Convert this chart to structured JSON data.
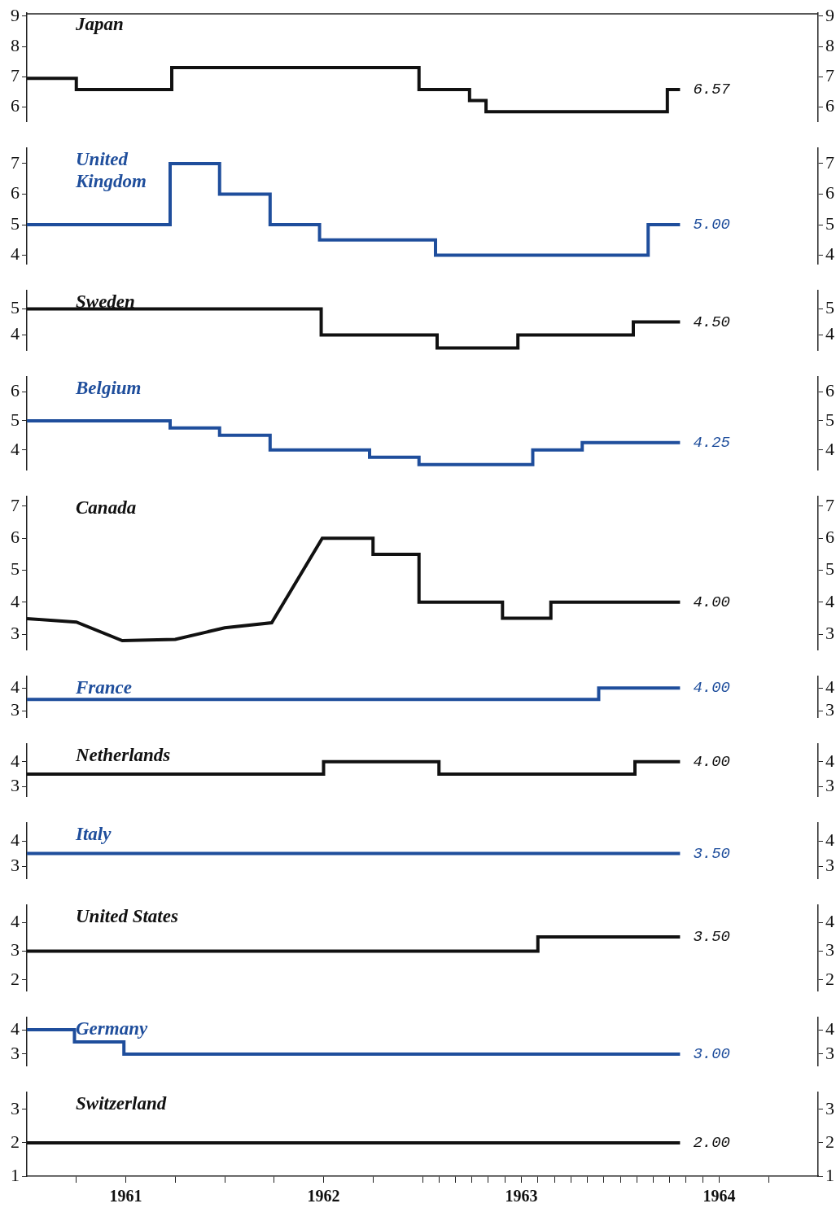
{
  "chart_data": [
    {
      "type": "step",
      "x": [
        "1961-01-01",
        "1961-04-01",
        "1961-09-25",
        "1962-12-25",
        "1963-03-27",
        "1963-04-27",
        "1964-03-27",
        "1964-04-20"
      ],
      "xlim": [
        "1961-01-01",
        "1965-01-01"
      ],
      "ylim": [
        5.5,
        9.1
      ],
      "yticks": [
        6,
        7,
        8,
        9
      ],
      "y2lim": [
        5.5,
        9.1
      ],
      "y2ticks": [
        6,
        7,
        8,
        9
      ],
      "tick_labels": "y",
      "series": [
        {
          "name": "Japan",
          "color": "#111111",
          "values": [
            6.94,
            6.57,
            7.3,
            6.57,
            6.21,
            5.84,
            6.57,
            6.57
          ],
          "value_labels": [
            null,
            null,
            null,
            null,
            null,
            null,
            null,
            "6.57"
          ]
        }
      ]
    },
    {
      "type": "step",
      "x": [
        "1961-01-01",
        "1961-09-22",
        "1961-12-22",
        "1962-03-24",
        "1962-06-24",
        "1963-01-25",
        "1964-02-22",
        "1964-04-20"
      ],
      "xlim": [
        "1961-01-01",
        "1965-01-01"
      ],
      "ylim": [
        3.7,
        7.5
      ],
      "yticks": [
        4,
        5,
        6,
        7
      ],
      "y2lim": [
        3.7,
        7.5
      ],
      "y2ticks": [
        4,
        5,
        6,
        7
      ],
      "tick_labels": "y",
      "series": [
        {
          "name": "United Kingdom",
          "color": "#1f4e9c",
          "values": [
            5,
            7,
            6,
            5,
            4.5,
            4,
            5,
            5
          ],
          "value_labels": [
            null,
            null,
            null,
            null,
            null,
            null,
            null,
            "5.00"
          ]
        }
      ]
    },
    {
      "type": "step",
      "x": [
        "1961-01-01",
        "1962-06-27",
        "1963-01-28",
        "1963-06-25",
        "1964-01-25",
        "1964-04-20"
      ],
      "xlim": [
        "1961-01-01",
        "1965-01-01"
      ],
      "ylim": [
        3.4,
        5.7
      ],
      "yticks": [
        4,
        5
      ],
      "y2lim": [
        3.4,
        5.7
      ],
      "y2ticks": [
        4,
        5
      ],
      "tick_labels": "y",
      "series": [
        {
          "name": "Sweden",
          "color": "#111111",
          "values": [
            5,
            4,
            3.5,
            4,
            4.5,
            4.5
          ],
          "value_labels": [
            null,
            null,
            null,
            null,
            null,
            "4.50"
          ]
        }
      ]
    },
    {
      "type": "step",
      "x": [
        "1961-01-01",
        "1961-09-22",
        "1961-12-22",
        "1962-03-24",
        "1962-09-25",
        "1962-12-25",
        "1963-07-22",
        "1963-10-22",
        "1964-04-20"
      ],
      "xlim": [
        "1961-01-01",
        "1965-01-01"
      ],
      "ylim": [
        3.3,
        6.5
      ],
      "yticks": [
        4,
        5,
        6
      ],
      "y2lim": [
        3.3,
        6.5
      ],
      "y2ticks": [
        4,
        5,
        6
      ],
      "tick_labels": "y",
      "series": [
        {
          "name": "Belgium",
          "color": "#1f4e9c",
          "values": [
            5,
            4.75,
            4.5,
            4,
            3.75,
            3.5,
            4,
            4.25,
            4.25
          ],
          "value_labels": [
            null,
            null,
            null,
            null,
            null,
            null,
            null,
            null,
            "4.25"
          ]
        }
      ]
    },
    {
      "type": "line",
      "x": [
        "1961-01-01",
        "1961-04-01",
        "1961-06-25",
        "1961-10-01",
        "1962-01-01",
        "1962-03-27",
        "1962-06-29",
        "1962-10-01",
        "1962-10-01",
        "1962-12-25",
        "1962-12-25",
        "1963-05-27",
        "1963-05-27",
        "1963-08-25",
        "1963-08-25",
        "1964-04-20"
      ],
      "xlim": [
        "1961-01-01",
        "1965-01-01"
      ],
      "ylim": [
        2.5,
        7.3
      ],
      "yticks": [
        3,
        4,
        5,
        6,
        7
      ],
      "y2lim": [
        2.5,
        7.3
      ],
      "y2ticks": [
        3,
        4,
        5,
        6,
        7
      ],
      "tick_labels": "y",
      "series": [
        {
          "name": "Canada",
          "color": "#111111",
          "values": [
            3.49,
            3.38,
            2.8,
            2.84,
            3.2,
            3.36,
            6,
            6,
            5.5,
            5.5,
            4,
            4,
            3.5,
            3.5,
            4,
            4
          ],
          "value_labels": [
            null,
            null,
            null,
            null,
            null,
            null,
            null,
            null,
            null,
            null,
            null,
            null,
            null,
            null,
            null,
            "4.00"
          ]
        }
      ]
    },
    {
      "type": "step",
      "x": [
        "1961-01-01",
        "1963-11-22",
        "1964-04-20"
      ],
      "xlim": [
        "1961-01-01",
        "1965-01-01"
      ],
      "ylim": [
        2.7,
        4.5
      ],
      "yticks": [
        3,
        4
      ],
      "y2lim": [
        2.7,
        4.5
      ],
      "y2ticks": [
        3,
        4
      ],
      "tick_labels": "y",
      "series": [
        {
          "name": "France",
          "color": "#1f4e9c",
          "values": [
            3.5,
            4,
            4
          ],
          "value_labels": [
            null,
            null,
            "4.00"
          ]
        }
      ]
    },
    {
      "type": "step",
      "x": [
        "1961-01-01",
        "1962-07-01",
        "1963-02-01",
        "1964-01-28",
        "1964-04-20"
      ],
      "xlim": [
        "1961-01-01",
        "1965-01-01"
      ],
      "ylim": [
        2.6,
        4.7
      ],
      "yticks": [
        3,
        4
      ],
      "y2lim": [
        2.6,
        4.7
      ],
      "y2ticks": [
        3,
        4
      ],
      "tick_labels": "y",
      "series": [
        {
          "name": "Netherlands",
          "color": "#111111",
          "values": [
            3.5,
            4,
            3.5,
            4,
            4
          ],
          "value_labels": [
            null,
            null,
            null,
            null,
            "4.00"
          ]
        }
      ]
    },
    {
      "type": "step",
      "x": [
        "1961-01-01",
        "1964-04-20"
      ],
      "xlim": [
        "1961-01-01",
        "1965-01-01"
      ],
      "ylim": [
        2.5,
        4.7
      ],
      "yticks": [
        3,
        4
      ],
      "y2lim": [
        2.5,
        4.7
      ],
      "y2ticks": [
        3,
        4
      ],
      "tick_labels": "y",
      "series": [
        {
          "name": "Italy",
          "color": "#1f4e9c",
          "values": [
            3.5,
            3.5
          ],
          "value_labels": [
            null,
            "3.50"
          ]
        }
      ]
    },
    {
      "type": "step",
      "x": [
        "1961-01-01",
        "1963-08-01",
        "1964-04-20"
      ],
      "xlim": [
        "1961-01-01",
        "1965-01-01"
      ],
      "ylim": [
        1.6,
        4.6
      ],
      "yticks": [
        2,
        3,
        4
      ],
      "y2lim": [
        1.6,
        4.6
      ],
      "y2ticks": [
        2,
        3,
        4
      ],
      "tick_labels": "y",
      "series": [
        {
          "name": "United States",
          "color": "#111111",
          "values": [
            3,
            3.5,
            3.5
          ],
          "value_labels": [
            null,
            null,
            "3.50"
          ]
        }
      ]
    },
    {
      "type": "step",
      "x": [
        "1961-01-01",
        "1961-03-28",
        "1961-06-28",
        "1964-04-20"
      ],
      "xlim": [
        "1961-01-01",
        "1965-01-01"
      ],
      "ylim": [
        2.5,
        4.5
      ],
      "yticks": [
        3,
        4
      ],
      "y2lim": [
        2.5,
        4.5
      ],
      "y2ticks": [
        3,
        4
      ],
      "tick_labels": "y",
      "series": [
        {
          "name": "Germany",
          "color": "#1f4e9c",
          "values": [
            4,
            3.5,
            3,
            3
          ],
          "value_labels": [
            null,
            null,
            null,
            "3.00"
          ]
        }
      ]
    },
    {
      "type": "step",
      "x": [
        "1961-01-01",
        "1964-04-20"
      ],
      "xlim": [
        "1961-01-01",
        "1965-01-01"
      ],
      "ylim": [
        1,
        3.5
      ],
      "yticks": [
        1,
        2,
        3
      ],
      "y2lim": [
        1,
        3.5
      ],
      "y2ticks": [
        1,
        2,
        3
      ],
      "xticks": [
        {
          "value": "1961-04",
          "label": null
        },
        {
          "value": "1961-07",
          "label": "1961"
        },
        {
          "value": "1961-10",
          "label": null
        },
        {
          "value": "1962-01",
          "label": null
        },
        {
          "value": "1962-04",
          "label": null
        },
        {
          "value": "1962-07",
          "label": "1962"
        },
        {
          "value": "1962-10",
          "label": null
        },
        {
          "value": "1963-01",
          "label": null
        },
        {
          "value": "1963-02",
          "label": null
        },
        {
          "value": "1963-03",
          "label": null
        },
        {
          "value": "1963-04",
          "label": null
        },
        {
          "value": "1963-05",
          "label": null
        },
        {
          "value": "1963-06",
          "label": null
        },
        {
          "value": "1963-07",
          "label": "1963"
        },
        {
          "value": "1963-08",
          "label": null
        },
        {
          "value": "1963-09",
          "label": null
        },
        {
          "value": "1963-10",
          "label": null
        },
        {
          "value": "1963-11",
          "label": null
        },
        {
          "value": "1963-12",
          "label": null
        },
        {
          "value": "1964-01",
          "label": null
        },
        {
          "value": "1964-02",
          "label": null
        },
        {
          "value": "1964-03",
          "label": null
        },
        {
          "value": "1964-04",
          "label": null
        },
        {
          "value": "1964-05",
          "label": null
        },
        {
          "value": "1964-06",
          "label": null
        },
        {
          "value": "1964-07",
          "label": "1964"
        },
        {
          "value": "1964-10",
          "label": null
        }
      ],
      "series": [
        {
          "name": "Switzerland",
          "color": "#111111",
          "values": [
            2,
            2
          ],
          "value_labels": [
            null,
            "2.00"
          ]
        }
      ]
    }
  ]
}
